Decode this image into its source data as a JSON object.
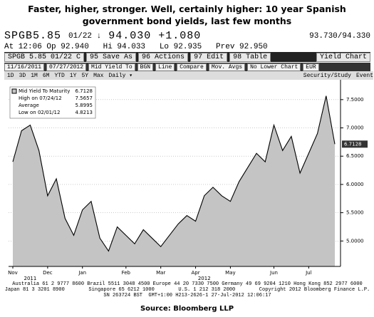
{
  "title": "Faster, higher, stronger. Well, certainly higher: 10 year Spanish government bond yields, last few months",
  "source": "Source: Bloomberg LLP",
  "terminal": {
    "quote_line": [
      "SPGB5.85",
      "01/22 ↓",
      "94.030",
      "+1.080",
      "93.730/94.330"
    ],
    "stats_line": "At 12:06 Op 92.940   Hi 94.033   Lo 92.935   Prev 92.950",
    "toolbar": [
      "SPGB 5.85 01/22 C",
      "95 Save As",
      "96 Actions",
      "97 Edit",
      "98 Table",
      "Yield Chart"
    ],
    "settings_row": [
      "11/16/2011",
      "07/27/2012",
      "Mid Yield To",
      "BGN",
      "Line",
      "Compare",
      "Mov. Avgs",
      "No Lower Chart",
      "EUR"
    ],
    "period_row": [
      "1D",
      "3D",
      "1M",
      "6M",
      "YTD",
      "1Y",
      "5Y",
      "Max",
      "Daily ▾",
      "Security/Study",
      "Event"
    ],
    "footer": [
      "Australia 61 2 9777 8600 Brazil 5511 3048 4500 Europe 44 20 7330 7500 Germany 49 69 9204 1210 Hong Kong 852 2977 6000",
      "Japan 81 3 3201 8900        Singapore 65 6212 1000        U.S. 1 212 318 2000        Copyright 2012 Bloomberg Finance L.P.",
      "SN 263724 BST  GMT+1:00 H213-2626-1 27-Jul-2012 12:06:17"
    ]
  },
  "chart_data": {
    "type": "line",
    "categories": [
      "Nov",
      null,
      null,
      null,
      "Dec",
      null,
      null,
      null,
      "Jan",
      null,
      null,
      null,
      null,
      "Feb",
      null,
      null,
      null,
      "Mar",
      null,
      null,
      null,
      "Apr",
      null,
      null,
      null,
      "May",
      null,
      null,
      null,
      null,
      "Jun",
      null,
      null,
      null,
      "Jul",
      null,
      null,
      null
    ],
    "year_labels": [
      "2011",
      "2012"
    ],
    "series": [
      {
        "name": "Mid Yield To Maturity",
        "color": "#000000",
        "values": [
          6.4,
          6.95,
          7.05,
          6.6,
          5.8,
          6.1,
          5.4,
          5.1,
          5.55,
          5.7,
          5.05,
          4.8213,
          5.25,
          5.1,
          4.95,
          5.2,
          5.05,
          4.9,
          5.1,
          5.3,
          5.45,
          5.35,
          5.8,
          5.95,
          5.8,
          5.7,
          6.05,
          6.3,
          6.55,
          6.4,
          7.05,
          6.6,
          6.85,
          6.2,
          6.55,
          6.9,
          7.5657,
          6.7128
        ]
      }
    ],
    "legend_stats": [
      {
        "label": "Mid Yield To Maturity",
        "value": 6.7128
      },
      {
        "label": "High on 07/24/12",
        "value": 7.5657
      },
      {
        "label": "Average",
        "value": 5.8995
      },
      {
        "label": "Low on 02/01/12",
        "value": 4.8213
      }
    ],
    "ylim": [
      4.55,
      7.75
    ],
    "yticks": [
      {
        "value": 5,
        "label": "5.0000"
      },
      {
        "value": 5.5,
        "label": "5.5000"
      },
      {
        "value": 6,
        "label": "6.0000"
      },
      {
        "value": 6.5,
        "label": "6.5000"
      },
      {
        "value": 7,
        "label": "7.0000"
      },
      {
        "value": 7.5,
        "label": "7.5000"
      }
    ],
    "grid": true,
    "fill_color": "#c4c4c4"
  }
}
